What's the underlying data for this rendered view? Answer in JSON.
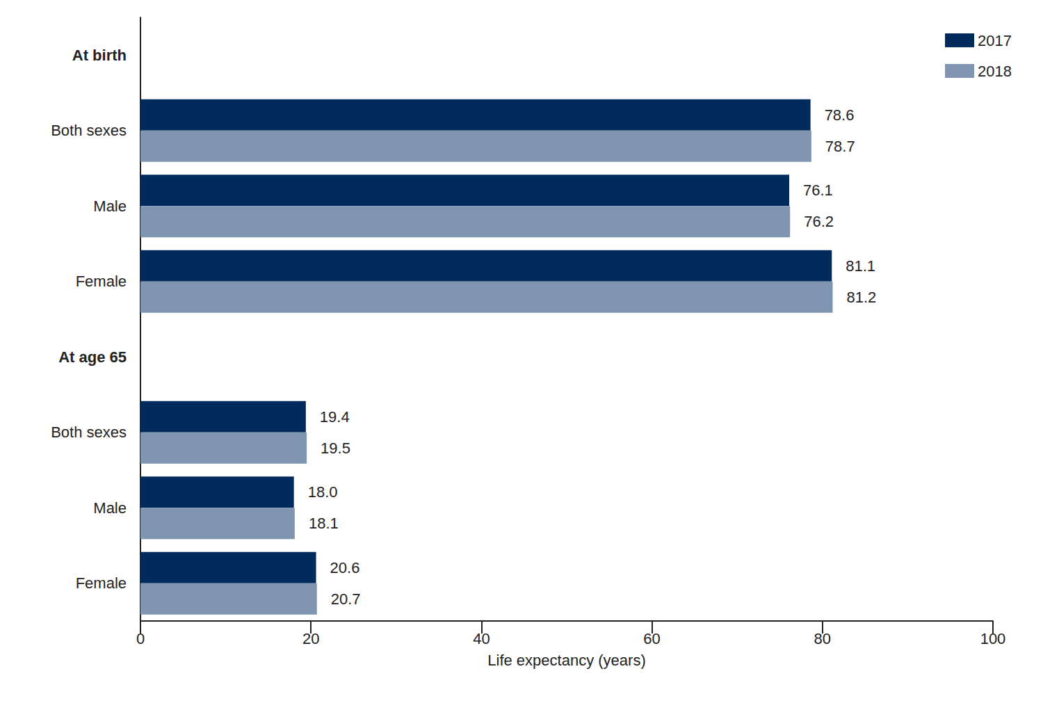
{
  "chart_data": {
    "type": "bar",
    "orientation": "horizontal",
    "categories": [
      "At birth",
      "Both sexes",
      "Male",
      "Female",
      "At age 65",
      "Both sexes",
      "Male",
      "Female"
    ],
    "series": [
      {
        "name": "2017",
        "color": "#002b5c",
        "values": [
          null,
          78.6,
          76.1,
          81.1,
          null,
          19.4,
          18.0,
          20.6
        ],
        "value_labels": [
          null,
          "78.6",
          "76.1",
          "81.1",
          null,
          "19.4",
          "18.0",
          "20.6"
        ]
      },
      {
        "name": "2018",
        "color": "#8096b0",
        "values": [
          null,
          78.7,
          76.2,
          81.2,
          null,
          19.5,
          18.1,
          20.7
        ],
        "value_labels": [
          null,
          "78.7",
          "76.2",
          "81.2",
          null,
          "19.5",
          "18.1",
          "20.7"
        ]
      }
    ],
    "xlabel": "Life expectancy (years)",
    "xlim": [
      0,
      100
    ],
    "xticks": [
      0,
      20,
      40,
      60,
      80,
      100
    ],
    "grid": false,
    "legend": "top-right",
    "data_labels": true
  }
}
